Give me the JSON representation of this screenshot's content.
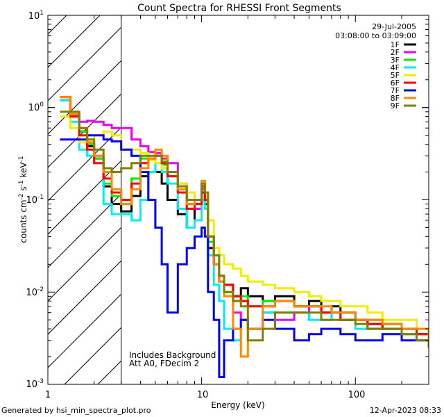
{
  "chart_data": {
    "type": "line",
    "title": "Count Spectra for RHESSI Front Segments",
    "xlabel": "Energy (keV)",
    "ylabel": "counts cm",
    "ylabel_sup1": "-2",
    "ylabel_mid": " s",
    "ylabel_sup2": "-1",
    "ylabel_end": " keV",
    "ylabel_sup3": "-1",
    "xscale": "log",
    "yscale": "log",
    "xlim": [
      1,
      300
    ],
    "ylim": [
      0.001,
      10
    ],
    "x_tick_labels": [
      {
        "value": 1,
        "label": "1"
      },
      {
        "value": 10,
        "label": "10"
      },
      {
        "value": 100,
        "label": "100"
      }
    ],
    "y_tick_labels": [
      {
        "value": 0.001,
        "base": "10",
        "exp": "-3"
      },
      {
        "value": 0.01,
        "base": "10",
        "exp": "-2"
      },
      {
        "value": 0.1,
        "base": "10",
        "exp": "-1"
      },
      {
        "value": 1,
        "base": "10",
        "exp": "0"
      },
      {
        "value": 10,
        "base": "10",
        "exp": "1"
      }
    ],
    "date": "29-Jul-2005",
    "time_range": "03:08:00 to 03:09:00",
    "annotations": [
      "Includes Background",
      "Att A0, FDecim 2"
    ],
    "hatched_region_max_energy": 3,
    "legend_position": "top-right",
    "x": [
      1.2,
      1.4,
      1.6,
      1.8,
      2.0,
      2.3,
      2.6,
      3.0,
      3.5,
      4.0,
      4.5,
      5.0,
      5.5,
      6.0,
      7.0,
      8.0,
      9.0,
      10.0,
      10.5,
      11.0,
      12.0,
      13.0,
      14.0,
      16.0,
      18.0,
      20.0,
      25.0,
      30.0,
      40.0,
      50.0,
      60.0,
      70.0,
      80.0,
      100.0,
      120.0,
      150.0,
      200.0,
      250.0,
      300.0
    ],
    "series": [
      {
        "name": "1F",
        "color": "#000000",
        "values": [
          1.2,
          0.8,
          0.55,
          0.38,
          0.28,
          0.14,
          0.09,
          0.075,
          0.11,
          0.18,
          0.2,
          0.2,
          0.15,
          0.1,
          0.07,
          0.05,
          0.08,
          0.12,
          0.09,
          0.03,
          0.02,
          0.015,
          0.012,
          0.009,
          0.011,
          0.009,
          0.008,
          0.009,
          0.007,
          0.008,
          0.006,
          0.007,
          0.006,
          0.005,
          0.004,
          0.0045,
          0.004,
          0.0035,
          0.003
        ]
      },
      {
        "name": "2F",
        "color": "#ee00ee",
        "values": [
          1.2,
          0.85,
          0.7,
          0.72,
          0.7,
          0.65,
          0.6,
          0.6,
          0.45,
          0.38,
          0.33,
          0.32,
          0.28,
          0.25,
          0.15,
          0.09,
          0.08,
          0.13,
          0.1,
          0.04,
          0.02,
          0.013,
          0.01,
          0.006,
          0.005,
          0.004,
          0.006,
          0.005,
          0.006,
          0.007,
          0.006,
          0.006,
          0.005,
          0.005,
          0.0045,
          0.004,
          0.0035,
          0.0035,
          0.003
        ]
      },
      {
        "name": "3F",
        "color": "#00ee00",
        "values": [
          1.2,
          0.85,
          0.55,
          0.4,
          0.28,
          0.15,
          0.11,
          0.09,
          0.17,
          0.28,
          0.28,
          0.3,
          0.24,
          0.18,
          0.12,
          0.08,
          0.09,
          0.14,
          0.1,
          0.035,
          0.025,
          0.013,
          0.01,
          0.008,
          0.009,
          0.007,
          0.008,
          0.008,
          0.007,
          0.007,
          0.006,
          0.006,
          0.006,
          0.005,
          0.005,
          0.004,
          0.004,
          0.0035,
          0.003
        ]
      },
      {
        "name": "4F",
        "color": "#00eeee",
        "values": [
          1.2,
          0.7,
          0.35,
          0.3,
          0.3,
          0.09,
          0.07,
          0.07,
          0.06,
          0.1,
          0.2,
          0.25,
          0.2,
          0.15,
          0.08,
          0.05,
          0.06,
          0.1,
          0.08,
          0.025,
          0.012,
          0.008,
          0.004,
          0.003,
          0.005,
          0.004,
          0.006,
          0.006,
          0.006,
          0.005,
          0.005,
          0.006,
          0.005,
          0.004,
          0.0045,
          0.004,
          0.0035,
          0.0035,
          0.003
        ]
      },
      {
        "name": "5F",
        "color": "#eeee00",
        "values": [
          0.8,
          0.6,
          0.42,
          0.45,
          0.5,
          0.55,
          0.5,
          0.35,
          0.35,
          0.32,
          0.27,
          0.25,
          0.22,
          0.2,
          0.15,
          0.12,
          0.1,
          0.15,
          0.12,
          0.06,
          0.03,
          0.025,
          0.02,
          0.018,
          0.015,
          0.013,
          0.012,
          0.011,
          0.01,
          0.009,
          0.008,
          0.008,
          0.007,
          0.007,
          0.006,
          0.005,
          0.005,
          0.004,
          0.0035
        ]
      },
      {
        "name": "6F",
        "color": "#ff0000",
        "values": [
          1.3,
          0.8,
          0.5,
          0.35,
          0.25,
          0.17,
          0.12,
          0.1,
          0.15,
          0.25,
          0.28,
          0.3,
          0.25,
          0.18,
          0.12,
          0.08,
          0.09,
          0.14,
          0.1,
          0.04,
          0.02,
          0.015,
          0.012,
          0.009,
          0.008,
          0.007,
          0.007,
          0.008,
          0.007,
          0.007,
          0.006,
          0.006,
          0.005,
          0.005,
          0.0045,
          0.004,
          0.004,
          0.0035,
          0.003
        ]
      },
      {
        "name": "7F",
        "color": "#0000ee",
        "values": [
          0.45,
          0.45,
          0.45,
          0.5,
          0.5,
          0.45,
          0.43,
          0.35,
          0.3,
          0.2,
          0.1,
          0.05,
          0.02,
          0.006,
          0.02,
          0.03,
          0.04,
          0.05,
          0.04,
          0.01,
          0.005,
          0.0012,
          0.003,
          0.004,
          0.005,
          0.004,
          0.005,
          0.004,
          0.003,
          0.0035,
          0.004,
          0.004,
          0.0035,
          0.003,
          0.003,
          0.0035,
          0.003,
          0.003,
          0.0025
        ]
      },
      {
        "name": "8F",
        "color": "#ff8800",
        "values": [
          1.3,
          0.85,
          0.6,
          0.42,
          0.3,
          0.2,
          0.13,
          0.09,
          0.13,
          0.22,
          0.28,
          0.35,
          0.3,
          0.2,
          0.13,
          0.09,
          0.1,
          0.16,
          0.12,
          0.04,
          0.02,
          0.013,
          0.009,
          0.004,
          0.002,
          0.004,
          0.007,
          0.008,
          0.007,
          0.007,
          0.007,
          0.006,
          0.006,
          0.005,
          0.005,
          0.0045,
          0.004,
          0.004,
          0.003
        ]
      },
      {
        "name": "9F",
        "color": "#808000",
        "values": [
          0.9,
          0.9,
          0.6,
          0.45,
          0.35,
          0.22,
          0.2,
          0.22,
          0.25,
          0.3,
          0.3,
          0.3,
          0.26,
          0.2,
          0.14,
          0.1,
          0.1,
          0.15,
          0.12,
          0.04,
          0.025,
          0.015,
          0.01,
          0.008,
          0.007,
          0.003,
          0.004,
          0.006,
          0.006,
          0.006,
          0.005,
          0.005,
          0.005,
          0.0045,
          0.004,
          0.004,
          0.0035,
          0.003,
          0.0025
        ]
      }
    ]
  },
  "footer": {
    "left": "Generated by hsi_min_spectra_plot.pro",
    "right": "12-Apr-2023 08:33"
  }
}
